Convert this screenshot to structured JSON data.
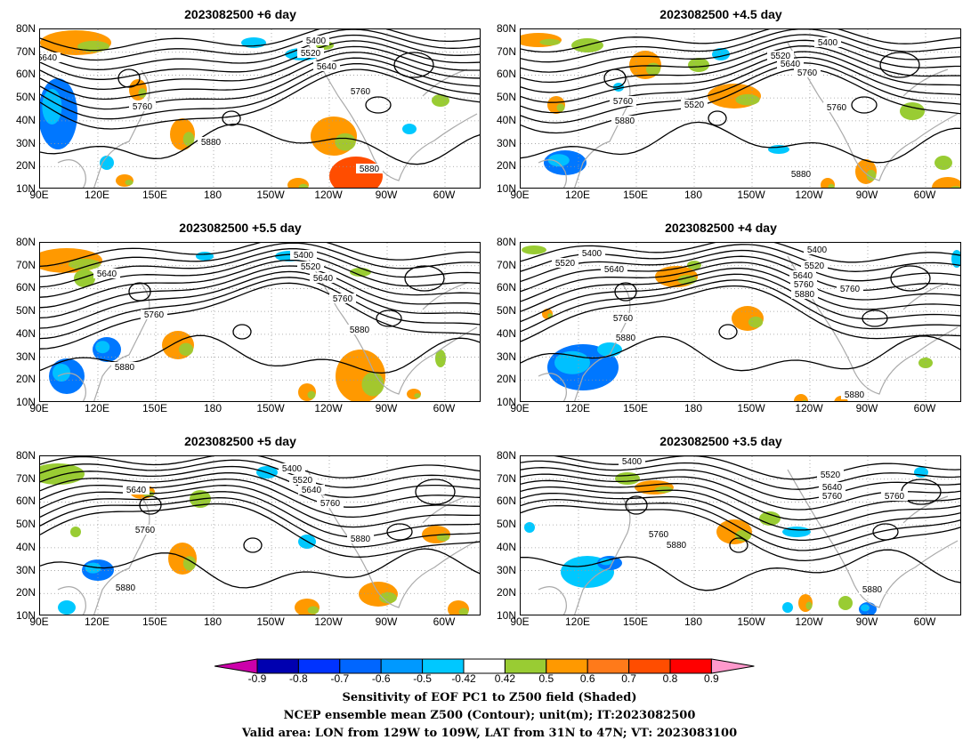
{
  "panels": [
    {
      "title": "2023082500 +6 day"
    },
    {
      "title": "2023082500 +4.5 day"
    },
    {
      "title": "2023082500 +5.5 day"
    },
    {
      "title": "2023082500 +4 day"
    },
    {
      "title": "2023082500 +5 day"
    },
    {
      "title": "2023082500 +3.5 day"
    }
  ],
  "lat_labels": [
    "80N",
    "70N",
    "60N",
    "50N",
    "40N",
    "30N",
    "20N",
    "10N"
  ],
  "lon_labels": [
    "90E",
    "120E",
    "150E",
    "180",
    "150W",
    "120W",
    "90W",
    "60W"
  ],
  "contour_labels": [
    "5400",
    "5520",
    "5640",
    "5760",
    "5880"
  ],
  "colorbar": {
    "ticks": [
      "-0.9",
      "-0.8",
      "-0.7",
      "-0.6",
      "-0.5",
      "-0.42",
      "0.42",
      "0.5",
      "0.6",
      "0.7",
      "0.8",
      "0.9"
    ],
    "colors": [
      "#0000b0",
      "#0033ff",
      "#0066ff",
      "#0099ff",
      "#00c8ff",
      "#ffffff",
      "#99cc33",
      "#ff9900",
      "#ff7a1a",
      "#ff4d00",
      "#ff0000"
    ],
    "left_end_color": "#cc00aa",
    "right_end_color": "#ff99cc"
  },
  "caption": {
    "line1": "Sensitivity of EOF PC1 to Z500 field (Shaded)",
    "line2": "NCEP ensemble mean Z500 (Contour); unit(m); IT:2023082500",
    "line3": "Valid area: LON from 129W to 109W, LAT from 31N to 47N; VT: 2023083100"
  }
}
